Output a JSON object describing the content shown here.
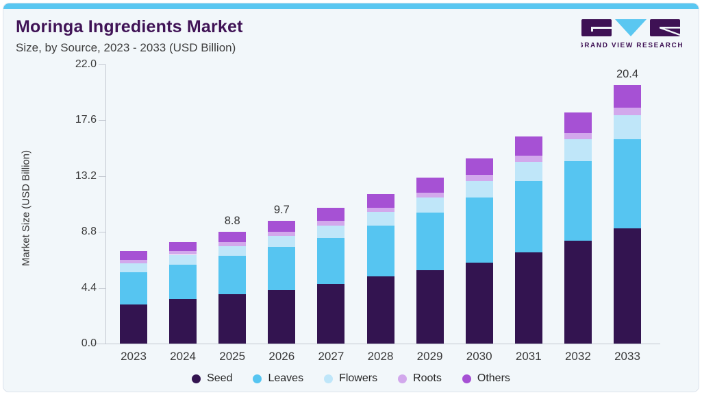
{
  "header": {
    "title": "Moringa Ingredients Market",
    "subtitle": "Size, by Source, 2023 - 2033 (USD Billion)"
  },
  "logo": {
    "text": "GRAND VIEW RESEARCH",
    "dark_color": "#3e1154",
    "blue_color": "#5ac7f1"
  },
  "theme": {
    "card_bg": "#f2f7fa",
    "accent_bar": "#5ac7f1",
    "title_color": "#401356",
    "text_color": "#3a3a3a",
    "axis_color": "#c2c7d0"
  },
  "chart_data": {
    "type": "bar",
    "stacked": true,
    "title": "Moringa Ingredients Market Size, by Source, 2023 - 2033 (USD Billion)",
    "xlabel": "",
    "ylabel": "Market Size (USD Billion)",
    "ylim": [
      0,
      22
    ],
    "ytick_labels": [
      "22.0",
      "17.6",
      "13.2",
      "8.8",
      "4.4",
      "0.0"
    ],
    "grid": false,
    "legend_position": "bottom",
    "categories": [
      "2023",
      "2024",
      "2025",
      "2026",
      "2027",
      "2028",
      "2029",
      "2030",
      "2031",
      "2032",
      "2033"
    ],
    "series": [
      {
        "name": "Seed",
        "color": "#331450",
        "values": [
          3.1,
          3.5,
          3.9,
          4.2,
          4.7,
          5.3,
          5.8,
          6.4,
          7.2,
          8.1,
          9.1
        ]
      },
      {
        "name": "Leaves",
        "color": "#56c5f1",
        "values": [
          2.5,
          2.7,
          3.0,
          3.4,
          3.6,
          4.0,
          4.5,
          5.1,
          5.6,
          6.3,
          7.0
        ]
      },
      {
        "name": "Flowers",
        "color": "#bfe6f9",
        "values": [
          0.7,
          0.8,
          0.8,
          0.9,
          1.0,
          1.1,
          1.2,
          1.3,
          1.5,
          1.7,
          1.9
        ]
      },
      {
        "name": "Roots",
        "color": "#d2a8ec",
        "values": [
          0.3,
          0.3,
          0.3,
          0.3,
          0.4,
          0.3,
          0.4,
          0.5,
          0.5,
          0.5,
          0.6
        ]
      },
      {
        "name": "Others",
        "color": "#a651d4",
        "values": [
          0.7,
          0.7,
          0.8,
          0.9,
          1.0,
          1.1,
          1.2,
          1.3,
          1.5,
          1.6,
          1.8
        ]
      }
    ],
    "totals": [
      7.3,
      8.0,
      8.8,
      9.7,
      10.7,
      11.8,
      13.1,
      14.6,
      16.3,
      18.2,
      20.4
    ],
    "annotations": [
      {
        "category": "2025",
        "text": "8.8"
      },
      {
        "category": "2026",
        "text": "9.7"
      },
      {
        "category": "2033",
        "text": "20.4"
      }
    ]
  }
}
